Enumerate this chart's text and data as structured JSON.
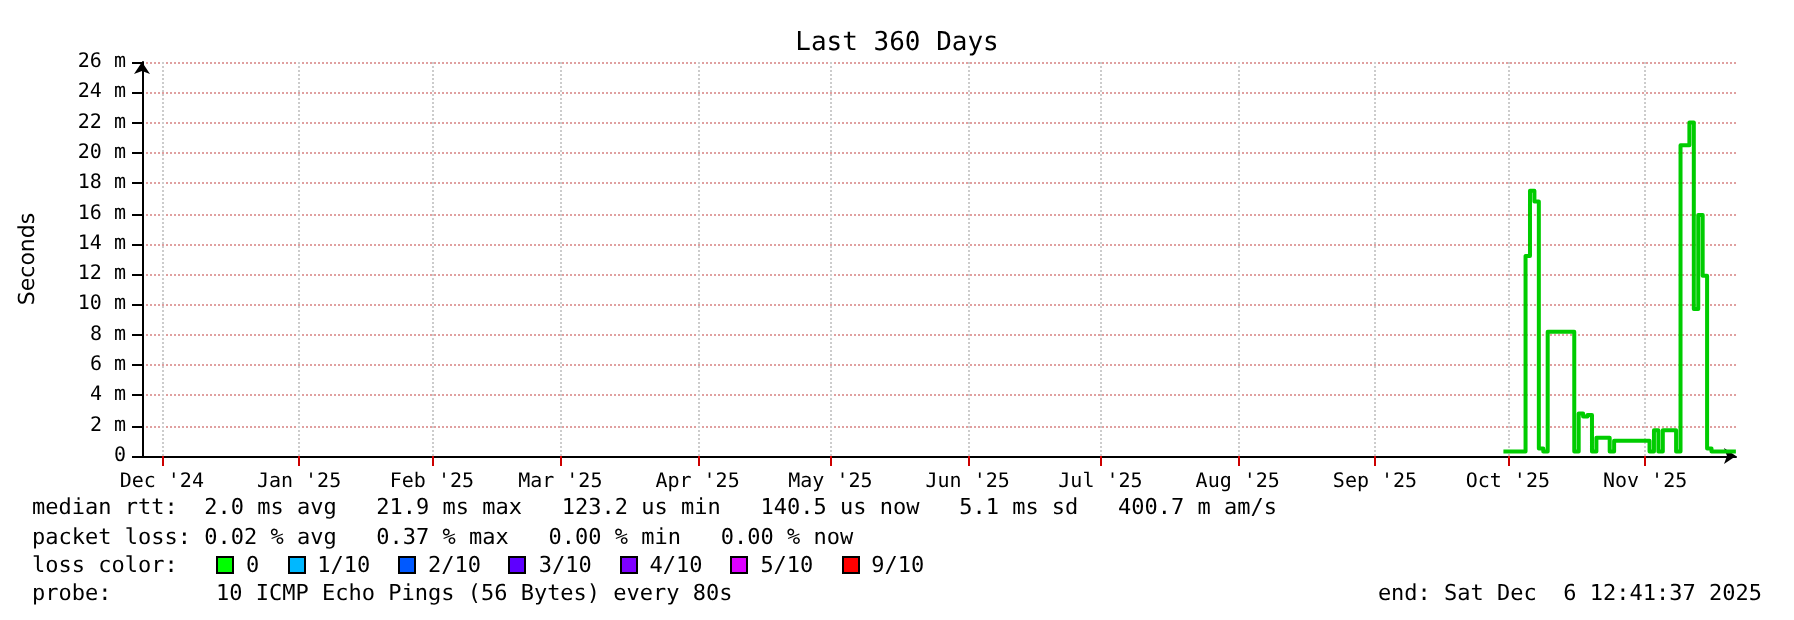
{
  "chart_data": {
    "type": "step",
    "title": "Last 360 Days",
    "ylabel": "Seconds",
    "x": [
      "2025-10-15",
      "2025-10-20",
      "2025-10-21",
      "2025-10-22",
      "2025-10-23",
      "2025-10-24",
      "2025-10-25",
      "2025-10-31",
      "2025-11-01",
      "2025-11-02",
      "2025-11-03",
      "2025-11-04",
      "2025-11-05",
      "2025-11-08",
      "2025-11-09",
      "2025-11-17",
      "2025-11-18",
      "2025-11-19",
      "2025-11-20",
      "2025-11-23",
      "2025-11-24",
      "2025-11-26",
      "2025-11-27",
      "2025-11-28",
      "2025-11-29",
      "2025-11-30",
      "2025-12-01",
      "2025-12-06T12:00"
    ],
    "series": [
      {
        "color": "#00cc00",
        "values": [
          0.3,
          0.3,
          13.2,
          17.5,
          16.8,
          0.5,
          0.3,
          8.2,
          0.3,
          2.8,
          2.6,
          2.7,
          0.3,
          1.2,
          0.3,
          1.0,
          0.3,
          1.7,
          0.3,
          1.7,
          0.3,
          20.5,
          22.0,
          9.7,
          15.9,
          11.9,
          0.5,
          0.3
        ]
      }
    ],
    "xlim": [
      "2024-12-11T12:41",
      "2025-12-06T12:41"
    ],
    "xticks": [
      {
        "value": "2024-12-16",
        "label": "Dec '24"
      },
      {
        "value": "2025-01-16",
        "label": "Jan '25"
      },
      {
        "value": "2025-02-15",
        "label": "Feb '25"
      },
      {
        "value": "2025-03-16",
        "label": "Mar '25"
      },
      {
        "value": "2025-04-16",
        "label": "Apr '25"
      },
      {
        "value": "2025-05-16",
        "label": "May '25"
      },
      {
        "value": "2025-06-16",
        "label": "Jun '25"
      },
      {
        "value": "2025-07-16",
        "label": "Jul '25"
      },
      {
        "value": "2025-08-16",
        "label": "Aug '25"
      },
      {
        "value": "2025-09-16",
        "label": "Sep '25"
      },
      {
        "value": "2025-10-16",
        "label": "Oct '25"
      },
      {
        "value": "2025-11-16",
        "label": "Nov '25"
      }
    ],
    "ylim": [
      0,
      26
    ],
    "yticks": [
      0,
      {
        "value": 2,
        "label": "2 m"
      },
      {
        "value": 4,
        "label": "4 m"
      },
      {
        "value": 6,
        "label": "6 m"
      },
      {
        "value": 8,
        "label": "8 m"
      },
      {
        "value": 10,
        "label": "10 m"
      },
      {
        "value": 12,
        "label": "12 m"
      },
      {
        "value": 14,
        "label": "14 m"
      },
      {
        "value": 16,
        "label": "16 m"
      },
      {
        "value": 18,
        "label": "18 m"
      },
      {
        "value": 20,
        "label": "20 m"
      },
      {
        "value": 22,
        "label": "22 m"
      },
      {
        "value": 24,
        "label": "24 m"
      },
      {
        "value": 26,
        "label": "26 m"
      }
    ],
    "grid": true,
    "marker": "none",
    "line_style": "solid",
    "annotations": [
      "median rtt:  2.0 ms avg   21.9 ms max   123.2 us min   140.5 us now   5.1 ms sd   400.7 m am/s",
      "packet loss: 0.02 % avg   0.37 % max   0.00 % min   0.00 % now",
      "loss color:",
      "0",
      "1/10",
      "2/10",
      "3/10",
      "4/10",
      "5/10",
      "9/10",
      "probe:",
      "10 ICMP Echo Pings (56 Bytes) every 80s",
      "end: Sat Dec  6 12:41:37 2025"
    ]
  }
}
